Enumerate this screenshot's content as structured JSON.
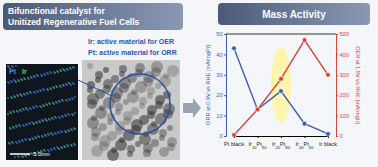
{
  "chart_data": {
    "type": "line",
    "title": "Mass Activity",
    "categories": [
      "Pt black",
      "Ir10Pt90",
      "Ir20Pt80",
      "Ir40Pt60",
      "Ir black"
    ],
    "series": [
      {
        "color": "#3b5fb3",
        "marker": "circle",
        "values": [
          43,
          13,
          22,
          6,
          1
        ]
      },
      {
        "color": "#d8433a",
        "marker": "circle",
        "axis": "y2",
        "values": [
          5,
          130,
          280,
          470,
          300
        ]
      }
    ],
    "y_label": "ORR at 0.9V vs RHE [mA/mgPt]",
    "y2_label": "OER at 1.5V vs RHE [mA/mgIr]",
    "ylim": [
      0,
      50
    ],
    "yticks": [
      0,
      10,
      20,
      30,
      40,
      50
    ],
    "y2lim": [
      0,
      500
    ],
    "y2ticks": [
      0,
      100,
      200,
      300,
      400,
      500
    ]
  },
  "left_panel": {
    "title_lines": [
      "Bifunctional catalyst for",
      "Unitized Regenerative Fuel Cells"
    ],
    "notes": [
      "Ir: active material for OER",
      "Pt: active material for ORR"
    ],
    "map_labels": [
      "Pt",
      "Ir"
    ],
    "scale_bar": "5.0nm"
  }
}
